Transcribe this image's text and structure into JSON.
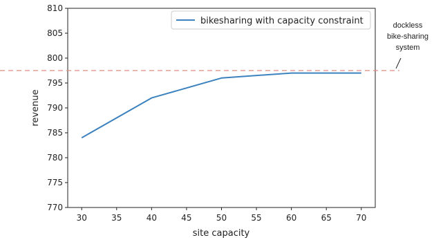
{
  "chart_data": {
    "type": "line",
    "xlabel": "site capacity",
    "ylabel": "revenue",
    "xlim": [
      28,
      72
    ],
    "ylim": [
      770,
      810
    ],
    "xticks": [
      30,
      35,
      40,
      45,
      50,
      55,
      60,
      65,
      70
    ],
    "yticks": [
      770,
      775,
      780,
      785,
      790,
      795,
      800,
      805,
      810
    ],
    "grid": false,
    "legend_position": "top-right",
    "series": [
      {
        "name": "bikesharing with capacity constraint",
        "color": "#3b82be",
        "x": [
          30,
          40,
          50,
          60,
          70
        ],
        "y": [
          784,
          792,
          796,
          797,
          797
        ]
      }
    ],
    "reference_lines": [
      {
        "orientation": "horizontal",
        "y": 797.5,
        "style": "dashed",
        "color": "#d98c80"
      }
    ],
    "annotations": [
      {
        "lines": [
          "dockless",
          "bike-sharing",
          "system"
        ]
      }
    ]
  }
}
